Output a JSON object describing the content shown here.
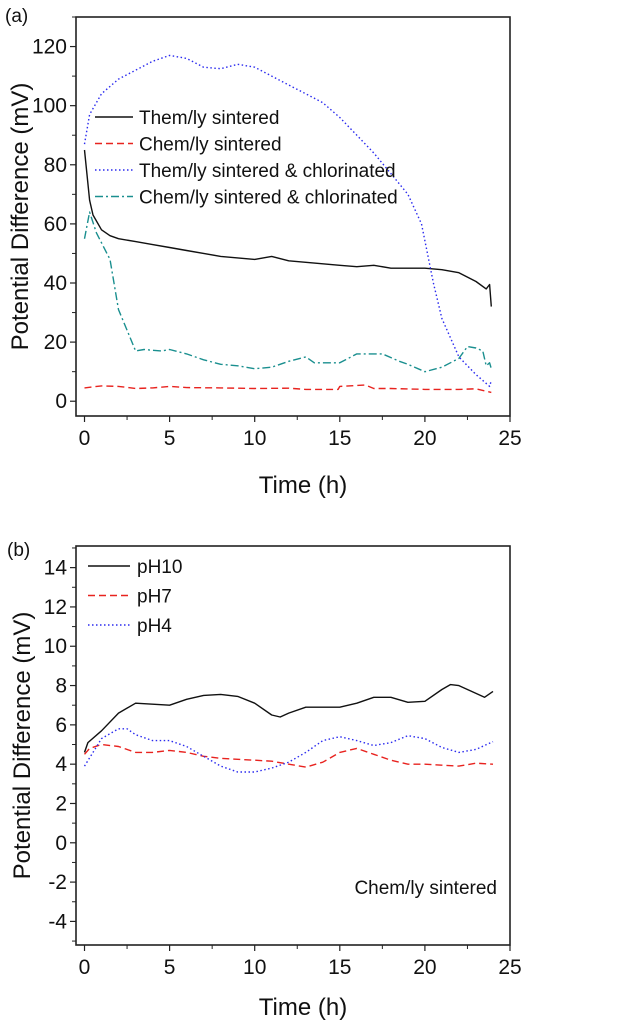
{
  "chart_data": [
    {
      "panel_label": "(a)",
      "type": "line",
      "xlabel": "Time (h)",
      "ylabel": "Potential Difference (mV)",
      "xlim": [
        -0.5,
        25
      ],
      "ylim": [
        -5,
        130
      ],
      "xticks": [
        0,
        5,
        10,
        15,
        20,
        25
      ],
      "yticks": [
        0,
        20,
        40,
        60,
        80,
        100,
        120
      ],
      "grid": false,
      "legend_position": "upper-left",
      "series": [
        {
          "name": "Them/ly sintered",
          "color": "#111111",
          "dash": "solid",
          "x": [
            0,
            0.3,
            0.5,
            1,
            1.5,
            2,
            3,
            4,
            5,
            6,
            7,
            8,
            9,
            10,
            11,
            12,
            13,
            14,
            15,
            16,
            17,
            18,
            19,
            20,
            21,
            22,
            23,
            23.6,
            23.8,
            23.9
          ],
          "y": [
            85,
            68,
            63,
            58,
            56,
            55,
            54,
            53,
            52,
            51,
            50,
            49,
            48.5,
            48,
            49,
            47.5,
            47,
            46.5,
            46,
            45.5,
            46,
            45,
            45,
            45,
            44.5,
            43.5,
            40.5,
            38,
            39.5,
            32
          ]
        },
        {
          "name": "Chem/ly sintered",
          "color": "#e8231f",
          "dash": "dashed",
          "x": [
            0,
            1,
            2,
            3,
            4,
            5,
            6,
            8,
            10,
            12,
            13,
            14.9,
            15,
            16.5,
            17,
            18,
            20,
            22,
            23,
            23.9
          ],
          "y": [
            4.5,
            5.2,
            5,
            4.3,
            4.5,
            5,
            4.6,
            4.5,
            4.3,
            4.4,
            4,
            4,
            5,
            5.5,
            4.3,
            4.3,
            4,
            4,
            4.2,
            3
          ]
        },
        {
          "name": "Them/ly sintered & chlorinated",
          "color": "#2b2bef",
          "dash": "dotted",
          "x": [
            0,
            0.3,
            1,
            2,
            3,
            4,
            5,
            6,
            7,
            8,
            9,
            10,
            11,
            12,
            13,
            14,
            15,
            16,
            17,
            18,
            19,
            19.8,
            20.5,
            21,
            22,
            23,
            23.8,
            23.9
          ],
          "y": [
            87,
            97,
            104,
            109,
            112,
            115,
            117,
            116,
            113,
            112.5,
            114,
            113,
            110,
            107,
            104,
            101,
            96,
            90,
            84,
            77,
            70,
            60,
            40,
            28,
            15,
            9,
            5,
            7
          ]
        },
        {
          "name": "Chem/ly sintered & chlorinated",
          "color": "#1a8f8f",
          "dash": "dashdot",
          "x": [
            0,
            0.3,
            0.7,
            1.5,
            2,
            2.5,
            3,
            3.5,
            4.5,
            5,
            6,
            7,
            8,
            9,
            10,
            11,
            12,
            13,
            13.5,
            15,
            16,
            17.5,
            18.5,
            19,
            20,
            21,
            22,
            22.5,
            23,
            23.4,
            23.6,
            23.8,
            23.9
          ],
          "y": [
            55,
            64,
            57,
            48,
            31,
            24,
            17,
            17.5,
            17,
            17.5,
            16,
            14,
            12.5,
            12,
            11,
            11.5,
            13.5,
            15,
            13,
            13,
            16,
            16,
            13.5,
            12.5,
            10,
            11.5,
            14.5,
            18.5,
            18,
            17,
            12,
            13,
            11
          ]
        }
      ]
    },
    {
      "panel_label": "(b)",
      "type": "line",
      "xlabel": "Time (h)",
      "ylabel": "Potential Difference (mV)",
      "xlim": [
        -0.5,
        25
      ],
      "ylim": [
        -5.2,
        15.1
      ],
      "xticks": [
        0,
        5,
        10,
        15,
        20,
        25
      ],
      "yticks": [
        -4,
        -2,
        0,
        2,
        4,
        6,
        8,
        10,
        12,
        14
      ],
      "grid": false,
      "legend_position": "upper-left",
      "annotation": "Chem/ly sintered",
      "series": [
        {
          "name": "pH10",
          "color": "#111111",
          "dash": "solid",
          "x": [
            0,
            0.2,
            1,
            2,
            3,
            4,
            5,
            6,
            7,
            8,
            9,
            10,
            11,
            11.5,
            12,
            13,
            14,
            15,
            16,
            17,
            18,
            19,
            20,
            21,
            21.5,
            22,
            23,
            23.5,
            24
          ],
          "y": [
            4.6,
            5.1,
            5.7,
            6.6,
            7.1,
            7.05,
            7.0,
            7.3,
            7.5,
            7.55,
            7.45,
            7.1,
            6.5,
            6.4,
            6.6,
            6.9,
            6.9,
            6.9,
            7.1,
            7.4,
            7.4,
            7.15,
            7.2,
            7.8,
            8.05,
            8.0,
            7.6,
            7.4,
            7.7
          ]
        },
        {
          "name": "pH7",
          "color": "#e8231f",
          "dash": "dashed",
          "x": [
            0,
            0.3,
            1,
            2,
            3,
            4,
            5,
            6,
            7,
            8,
            9,
            10,
            11,
            12,
            13,
            14,
            15,
            16,
            17,
            18,
            19,
            20,
            21,
            22,
            23,
            24
          ],
          "y": [
            4.5,
            4.8,
            5.0,
            4.9,
            4.6,
            4.6,
            4.7,
            4.6,
            4.4,
            4.3,
            4.25,
            4.2,
            4.15,
            4.0,
            3.85,
            4.1,
            4.6,
            4.8,
            4.5,
            4.2,
            4.0,
            4.0,
            3.95,
            3.9,
            4.05,
            4.0
          ]
        },
        {
          "name": "pH4",
          "color": "#2b2bef",
          "dash": "dotted",
          "x": [
            0,
            0.5,
            1,
            2,
            2.5,
            3,
            4,
            5,
            6,
            7,
            8,
            9,
            10,
            11,
            12,
            13,
            14,
            15,
            16,
            17,
            18,
            19,
            20,
            21,
            22,
            23,
            24
          ],
          "y": [
            3.9,
            4.6,
            5.3,
            5.8,
            5.8,
            5.5,
            5.2,
            5.2,
            4.9,
            4.4,
            3.9,
            3.6,
            3.6,
            3.8,
            4.1,
            4.6,
            5.2,
            5.4,
            5.2,
            4.95,
            5.1,
            5.45,
            5.3,
            4.85,
            4.6,
            4.75,
            5.15
          ]
        }
      ]
    }
  ]
}
